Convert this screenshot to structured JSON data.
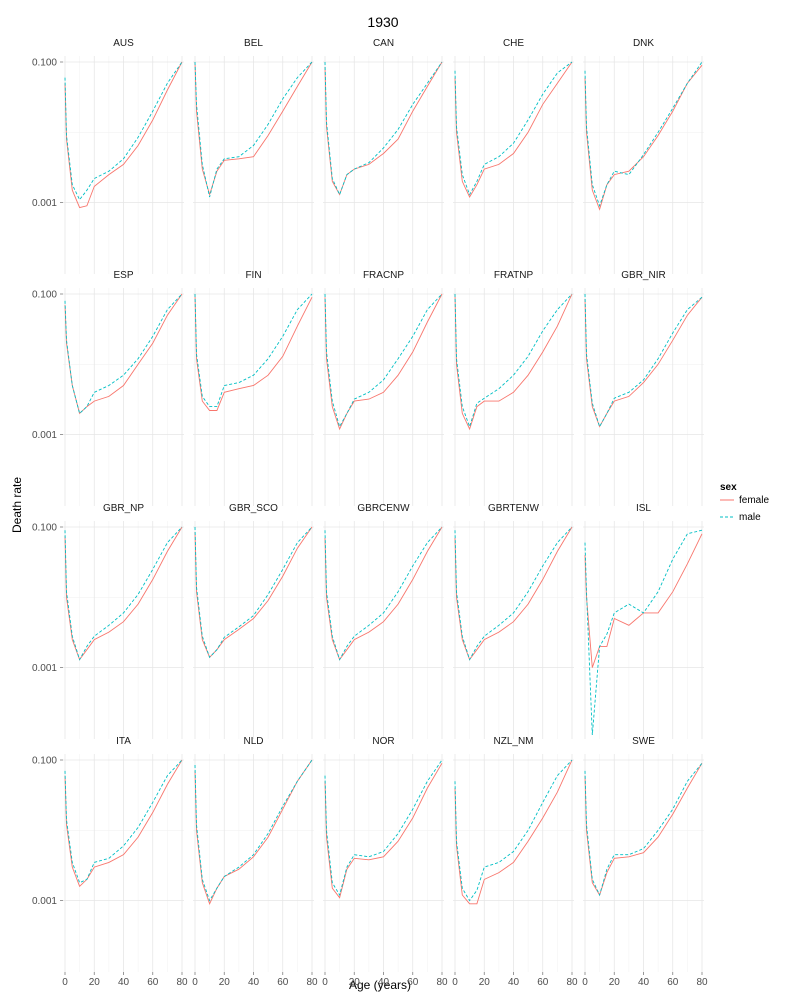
{
  "chart_data": {
    "type": "line",
    "title": "1930",
    "xlabel": "Age (years)",
    "ylabel": "Death rate",
    "y_scale": "log10",
    "xlim": [
      0,
      80
    ],
    "ylim": [
      0.00011,
      0.1
    ],
    "x_ticks": [
      0,
      20,
      40,
      60,
      80
    ],
    "x_tick_labels": [
      "0",
      "20",
      "40",
      "60",
      "80"
    ],
    "y_ticks": [
      0.001,
      0.1
    ],
    "y_tick_labels": [
      "0.001",
      "0.100"
    ],
    "grid": true,
    "layout": {
      "rows": 4,
      "cols": 5
    },
    "legend": {
      "title": "sex",
      "position": "right",
      "entries": [
        {
          "name": "female",
          "color": "#F8766D",
          "linetype": "solid"
        },
        {
          "name": "male",
          "color": "#00BFC4",
          "linetype": "dashed"
        }
      ]
    },
    "x": [
      0,
      1,
      5,
      10,
      15,
      20,
      30,
      40,
      50,
      60,
      70,
      80
    ],
    "panels": [
      {
        "label": "AUS",
        "series": [
          {
            "name": "female",
            "values": [
              0.05,
              0.008,
              0.0015,
              0.00085,
              0.0009,
              0.0017,
              0.0025,
              0.0035,
              0.0065,
              0.015,
              0.04,
              0.1
            ]
          },
          {
            "name": "male",
            "values": [
              0.06,
              0.009,
              0.0018,
              0.0011,
              0.0015,
              0.0022,
              0.0028,
              0.0042,
              0.0085,
              0.02,
              0.05,
              0.1
            ]
          }
        ]
      },
      {
        "label": "BEL",
        "series": [
          {
            "name": "female",
            "values": [
              0.1,
              0.02,
              0.003,
              0.0013,
              0.0028,
              0.004,
              0.0042,
              0.0045,
              0.009,
              0.02,
              0.045,
              0.1
            ]
          },
          {
            "name": "male",
            "values": [
              0.1,
              0.025,
              0.0035,
              0.0012,
              0.003,
              0.0042,
              0.0045,
              0.0065,
              0.013,
              0.03,
              0.06,
              0.1
            ]
          }
        ]
      },
      {
        "label": "CAN",
        "series": [
          {
            "name": "female",
            "values": [
              0.085,
              0.012,
              0.002,
              0.0013,
              0.0025,
              0.003,
              0.0035,
              0.005,
              0.008,
              0.02,
              0.045,
              0.1
            ]
          },
          {
            "name": "male",
            "values": [
              0.1,
              0.014,
              0.0022,
              0.0013,
              0.0025,
              0.003,
              0.0037,
              0.006,
              0.011,
              0.025,
              0.05,
              0.1
            ]
          }
        ]
      },
      {
        "label": "CHE",
        "series": [
          {
            "name": "female",
            "values": [
              0.06,
              0.01,
              0.002,
              0.0012,
              0.0018,
              0.003,
              0.0035,
              0.005,
              0.01,
              0.025,
              0.05,
              0.1
            ]
          },
          {
            "name": "male",
            "values": [
              0.075,
              0.012,
              0.0025,
              0.0013,
              0.002,
              0.0035,
              0.0045,
              0.007,
              0.015,
              0.035,
              0.07,
              0.1
            ]
          }
        ]
      },
      {
        "label": "DNK",
        "series": [
          {
            "name": "female",
            "values": [
              0.06,
              0.01,
              0.0015,
              0.0008,
              0.0018,
              0.0025,
              0.0028,
              0.0045,
              0.009,
              0.02,
              0.05,
              0.09
            ]
          },
          {
            "name": "male",
            "values": [
              0.075,
              0.012,
              0.0018,
              0.0009,
              0.0018,
              0.0028,
              0.0025,
              0.0048,
              0.01,
              0.022,
              0.05,
              0.1
            ]
          }
        ]
      },
      {
        "label": "ESP",
        "series": [
          {
            "name": "female",
            "values": [
              0.07,
              0.02,
              0.005,
              0.002,
              0.0025,
              0.003,
              0.0035,
              0.005,
              0.01,
              0.02,
              0.05,
              0.1
            ]
          },
          {
            "name": "male",
            "values": [
              0.08,
              0.022,
              0.005,
              0.002,
              0.0025,
              0.004,
              0.005,
              0.007,
              0.012,
              0.025,
              0.06,
              0.1
            ]
          }
        ]
      },
      {
        "label": "FIN",
        "series": [
          {
            "name": "female",
            "values": [
              0.1,
              0.012,
              0.003,
              0.0022,
              0.0022,
              0.004,
              0.0045,
              0.005,
              0.007,
              0.013,
              0.035,
              0.09
            ]
          },
          {
            "name": "male",
            "values": [
              0.1,
              0.014,
              0.0035,
              0.0025,
              0.0025,
              0.005,
              0.0055,
              0.007,
              0.012,
              0.025,
              0.06,
              0.1
            ]
          }
        ]
      },
      {
        "label": "FRACNP",
        "series": [
          {
            "name": "female",
            "values": [
              0.09,
              0.012,
              0.0025,
              0.0012,
              0.002,
              0.003,
              0.0032,
              0.004,
              0.007,
              0.015,
              0.04,
              0.1
            ]
          },
          {
            "name": "male",
            "values": [
              0.1,
              0.015,
              0.003,
              0.0013,
              0.002,
              0.0032,
              0.004,
              0.006,
              0.012,
              0.025,
              0.06,
              0.1
            ]
          }
        ]
      },
      {
        "label": "FRATNP",
        "series": [
          {
            "name": "female",
            "values": [
              0.1,
              0.01,
              0.002,
              0.0012,
              0.0025,
              0.003,
              0.003,
              0.004,
              0.007,
              0.015,
              0.035,
              0.1
            ]
          },
          {
            "name": "male",
            "values": [
              0.1,
              0.012,
              0.0025,
              0.0013,
              0.0028,
              0.0033,
              0.0045,
              0.007,
              0.013,
              0.03,
              0.06,
              0.1
            ]
          }
        ]
      },
      {
        "label": "GBR_NIR",
        "series": [
          {
            "name": "female",
            "values": [
              0.085,
              0.012,
              0.0025,
              0.0013,
              0.002,
              0.003,
              0.0035,
              0.0055,
              0.01,
              0.022,
              0.05,
              0.09
            ]
          },
          {
            "name": "male",
            "values": [
              0.1,
              0.014,
              0.0028,
              0.0013,
              0.002,
              0.0033,
              0.004,
              0.006,
              0.012,
              0.028,
              0.06,
              0.09
            ]
          }
        ]
      },
      {
        "label": "GBR_NP",
        "series": [
          {
            "name": "female",
            "values": [
              0.075,
              0.01,
              0.0025,
              0.0013,
              0.0018,
              0.0025,
              0.0032,
              0.0045,
              0.008,
              0.018,
              0.045,
              0.1
            ]
          },
          {
            "name": "male",
            "values": [
              0.09,
              0.012,
              0.0028,
              0.0013,
              0.002,
              0.0028,
              0.004,
              0.006,
              0.011,
              0.025,
              0.06,
              0.1
            ]
          }
        ]
      },
      {
        "label": "GBR_SCO",
        "series": [
          {
            "name": "female",
            "values": [
              0.085,
              0.012,
              0.0025,
              0.0014,
              0.0018,
              0.0025,
              0.0035,
              0.005,
              0.009,
              0.02,
              0.05,
              0.1
            ]
          },
          {
            "name": "male",
            "values": [
              0.1,
              0.014,
              0.0028,
              0.0014,
              0.0018,
              0.0027,
              0.0038,
              0.0055,
              0.011,
              0.025,
              0.06,
              0.1
            ]
          }
        ]
      },
      {
        "label": "GBRCENW",
        "series": [
          {
            "name": "female",
            "values": [
              0.07,
              0.01,
              0.0025,
              0.0013,
              0.0018,
              0.0025,
              0.0032,
              0.0045,
              0.008,
              0.018,
              0.045,
              0.1
            ]
          },
          {
            "name": "male",
            "values": [
              0.09,
              0.012,
              0.0028,
              0.0013,
              0.002,
              0.0028,
              0.004,
              0.006,
              0.012,
              0.028,
              0.06,
              0.1
            ]
          }
        ]
      },
      {
        "label": "GBRTENW",
        "series": [
          {
            "name": "female",
            "values": [
              0.07,
              0.01,
              0.0025,
              0.0013,
              0.0018,
              0.0025,
              0.0032,
              0.0045,
              0.008,
              0.018,
              0.045,
              0.1
            ]
          },
          {
            "name": "male",
            "values": [
              0.09,
              0.012,
              0.0028,
              0.0013,
              0.002,
              0.0028,
              0.004,
              0.006,
              0.012,
              0.028,
              0.06,
              0.1
            ]
          }
        ]
      },
      {
        "label": "ISL",
        "series": [
          {
            "name": "female",
            "values": [
              0.04,
              0.01,
              0.001,
              0.002,
              0.002,
              0.005,
              0.004,
              0.006,
              0.006,
              0.012,
              0.03,
              0.08
            ]
          },
          {
            "name": "male",
            "values": [
              0.06,
              0.012,
              0.00011,
              0.002,
              0.003,
              0.006,
              0.008,
              0.006,
              0.012,
              0.035,
              0.08,
              0.09
            ]
          }
        ]
      },
      {
        "label": "ITA",
        "series": [
          {
            "name": "female",
            "values": [
              0.06,
              0.012,
              0.003,
              0.0016,
              0.002,
              0.003,
              0.0035,
              0.0045,
              0.008,
              0.018,
              0.045,
              0.1
            ]
          },
          {
            "name": "male",
            "values": [
              0.07,
              0.014,
              0.0035,
              0.0018,
              0.002,
              0.0035,
              0.004,
              0.006,
              0.011,
              0.025,
              0.06,
              0.1
            ]
          }
        ]
      },
      {
        "label": "NLD",
        "series": [
          {
            "name": "female",
            "values": [
              0.07,
              0.01,
              0.0018,
              0.0009,
              0.0015,
              0.0022,
              0.0028,
              0.0042,
              0.008,
              0.02,
              0.05,
              0.1
            ]
          },
          {
            "name": "male",
            "values": [
              0.085,
              0.012,
              0.002,
              0.001,
              0.0015,
              0.0022,
              0.003,
              0.0045,
              0.009,
              0.022,
              0.05,
              0.1
            ]
          }
        ]
      },
      {
        "label": "NOR",
        "series": [
          {
            "name": "female",
            "values": [
              0.05,
              0.008,
              0.0015,
              0.0011,
              0.0028,
              0.004,
              0.0038,
              0.0042,
              0.007,
              0.015,
              0.04,
              0.09
            ]
          },
          {
            "name": "male",
            "values": [
              0.06,
              0.01,
              0.0018,
              0.0012,
              0.003,
              0.0045,
              0.0042,
              0.005,
              0.009,
              0.02,
              0.05,
              0.1
            ]
          }
        ]
      },
      {
        "label": "NZL_NM",
        "series": [
          {
            "name": "female",
            "values": [
              0.04,
              0.006,
              0.0012,
              0.0009,
              0.0009,
              0.002,
              0.0025,
              0.0035,
              0.007,
              0.015,
              0.035,
              0.1
            ]
          },
          {
            "name": "male",
            "values": [
              0.05,
              0.007,
              0.0015,
              0.001,
              0.0014,
              0.003,
              0.0035,
              0.005,
              0.01,
              0.025,
              0.06,
              0.1
            ]
          }
        ]
      },
      {
        "label": "SWE",
        "series": [
          {
            "name": "female",
            "values": [
              0.06,
              0.01,
              0.0018,
              0.0012,
              0.0025,
              0.004,
              0.0042,
              0.0048,
              0.008,
              0.017,
              0.04,
              0.09
            ]
          },
          {
            "name": "male",
            "values": [
              0.07,
              0.012,
              0.002,
              0.0012,
              0.0028,
              0.0045,
              0.0045,
              0.0055,
              0.01,
              0.02,
              0.05,
              0.09
            ]
          }
        ]
      }
    ]
  }
}
